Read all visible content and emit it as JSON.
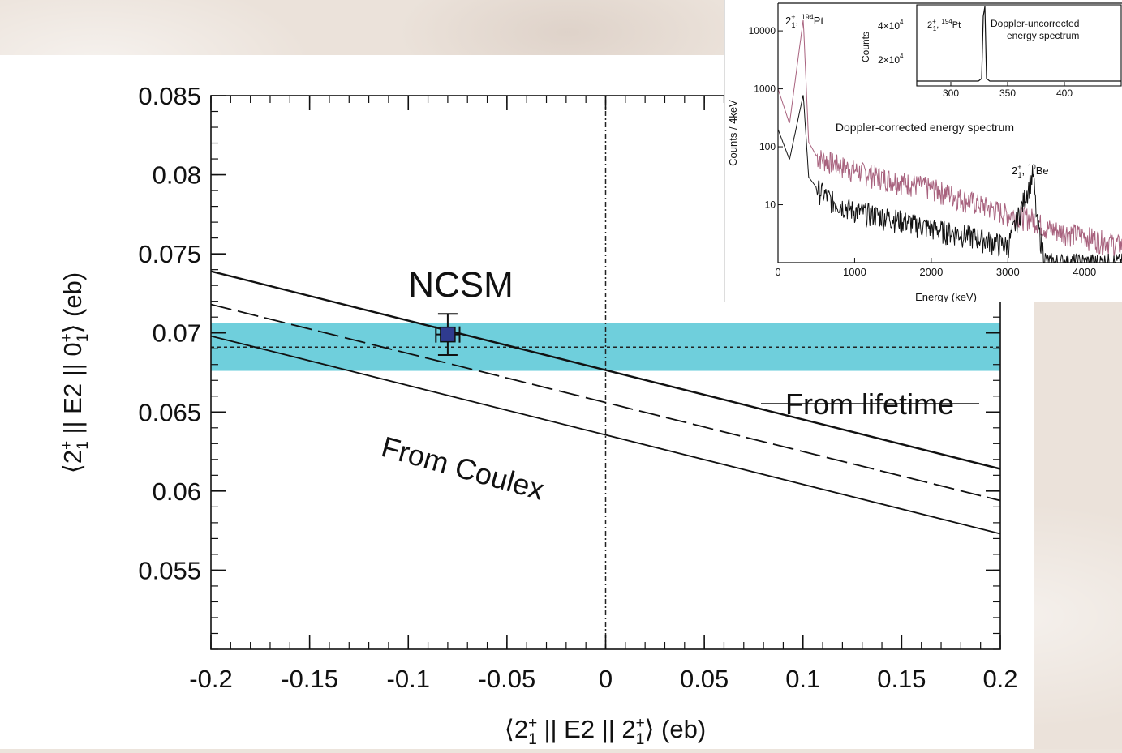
{
  "chart_data": [
    {
      "type": "line",
      "xlabel_parts": {
        "open": "⟨2",
        "sup": "+",
        "sub": "1",
        "mid": " || E2 || 2",
        "close": "⟩  (eb)"
      },
      "ylabel_parts": {
        "open": "⟨2",
        "sup1": "+",
        "sub1": "1",
        "mid": " || E2 || 0",
        "sup2": "+",
        "sub2": "1",
        "close": "⟩  (eb)"
      },
      "xlim": [
        -0.2,
        0.2
      ],
      "ylim": [
        0.05,
        0.085
      ],
      "x_ticks": [
        "-0.2",
        "-0.15",
        "-0.1",
        "-0.05",
        "0",
        "0.05",
        "0.1",
        "0.15",
        "0.2"
      ],
      "y_ticks": [
        "0.085",
        "0.08",
        "0.075",
        "0.07",
        "0.065",
        "0.06",
        "0.055"
      ],
      "x_tick_values": [
        -0.2,
        -0.15,
        -0.1,
        -0.05,
        0,
        0.05,
        0.1,
        0.15,
        0.2
      ],
      "y_tick_values": [
        0.085,
        0.08,
        0.075,
        0.07,
        0.065,
        0.06,
        0.055
      ],
      "series": [
        {
          "style": "solid",
          "x": [
            -0.2,
            0.2
          ],
          "y": [
            0.0739,
            0.0614
          ]
        },
        {
          "style": "dashed",
          "x": [
            -0.2,
            0.2
          ],
          "y": [
            0.0718,
            0.0594
          ]
        },
        {
          "style": "solid",
          "x": [
            -0.2,
            0.2
          ],
          "y": [
            0.0698,
            0.0573
          ]
        }
      ],
      "band": {
        "y_low": 0.0676,
        "y_high": 0.0706,
        "y_center": 0.0691,
        "color": "#6fcfdc"
      },
      "vline_x": 0,
      "point": {
        "label": "NCSM",
        "x": -0.08,
        "y": 0.0699,
        "xerr": 0.006,
        "yerr": 0.0013,
        "color": "#2f3b8f"
      },
      "annotations": {
        "lifetime": "From lifetime",
        "coulex": "From Coulex"
      }
    },
    {
      "type": "line",
      "title": "Doppler-corrected energy spectrum",
      "xlabel": "Energy (keV)",
      "ylabel": "Counts / 4keV",
      "y_scale": "log",
      "xlim": [
        0,
        4500
      ],
      "x_ticks": [
        "0",
        "1000",
        "2000",
        "3000",
        "4000"
      ],
      "x_tick_values": [
        0,
        1000,
        2000,
        3000,
        4000
      ],
      "y_ticks": [
        "10",
        "100",
        "1000",
        "10000"
      ],
      "y_tick_values": [
        10,
        100,
        1000,
        10000
      ],
      "series": [
        {
          "color": "#a8627e",
          "x": [
            0,
            150,
            330,
            400,
            500,
            700,
            1000,
            1500,
            2000,
            2500,
            3000,
            3330,
            3500,
            4000,
            4500
          ],
          "y": [
            1000,
            250,
            16000,
            120,
            70,
            55,
            40,
            28,
            20,
            12,
            7,
            6,
            4,
            3,
            2
          ]
        },
        {
          "color": "#111111",
          "x": [
            0,
            150,
            330,
            400,
            500,
            700,
            1000,
            1500,
            2000,
            2500,
            3000,
            3330,
            3380,
            3500,
            4000,
            4500
          ],
          "y": [
            200,
            60,
            800,
            30,
            20,
            12,
            8,
            6,
            4,
            3,
            2,
            35,
            5,
            1,
            1,
            1
          ]
        }
      ],
      "peak_labels": [
        {
          "main": "2",
          "sup": "+",
          "sub": "1",
          "tail": ", ",
          "nuc_sup": "194",
          "nuc": "Pt"
        },
        {
          "main": "2",
          "sup": "+",
          "sub": "1",
          "tail": ", ",
          "nuc_sup": "10",
          "nuc": "Be"
        }
      ],
      "inner": {
        "title_line1": "Doppler-uncorrected",
        "title_line2": "energy spectrum",
        "ylabel": "Counts",
        "x_ticks": [
          "300",
          "350",
          "400"
        ],
        "y_ticks": [
          "4×10",
          "2×10"
        ],
        "y_tick_exp": "4",
        "peak_label": {
          "main": "2",
          "sup": "+",
          "sub": "1",
          "tail": ", ",
          "nuc_sup": "194",
          "nuc": "Pt"
        }
      }
    }
  ]
}
